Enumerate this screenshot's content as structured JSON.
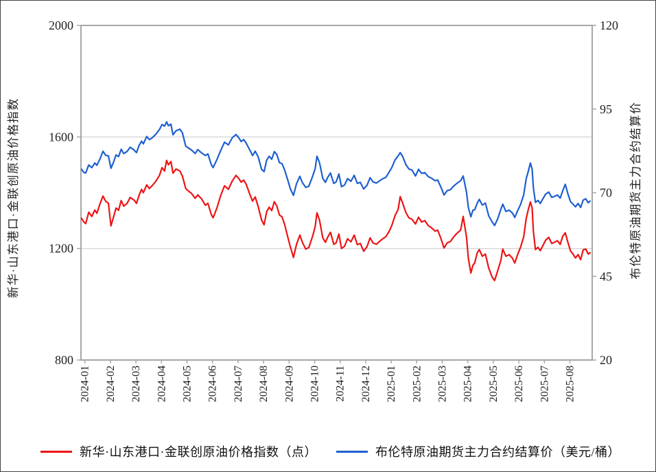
{
  "chart_data": {
    "type": "line",
    "title": "",
    "grid": "horizontal gridlines at left-axis ticks only",
    "legend_position": "bottom",
    "x_axis": {
      "tick_labels": [
        "2024-01",
        "2024-02",
        "2024-03",
        "2024-04",
        "2024-05",
        "2024-06",
        "2024-07",
        "2024-08",
        "2024-09",
        "2024-10",
        "2024-11",
        "2024-12",
        "2025-01",
        "2025-02",
        "2025-03",
        "2025-04",
        "2025-05",
        "2025-06",
        "2025-07",
        "2025-08"
      ]
    },
    "left_axis": {
      "label": "新华·山东港口·金联创原油价格指数",
      "range": [
        800,
        2000
      ],
      "ticks": [
        2000,
        1600,
        1200,
        800
      ]
    },
    "right_axis": {
      "label": "布伦特原油期货主力合约结算价",
      "range": [
        20,
        120
      ],
      "ticks": [
        120,
        95,
        70,
        45,
        20
      ]
    },
    "x_unit_months_from_2024_01": true,
    "x": [
      0,
      0.08,
      0.16,
      0.28,
      0.4,
      0.52,
      0.6,
      0.72,
      0.84,
      0.94,
      1.05,
      1.15,
      1.25,
      1.35,
      1.45,
      1.55,
      1.65,
      1.78,
      1.9,
      2.05,
      2.15,
      2.25,
      2.35,
      2.42,
      2.55,
      2.65,
      2.75,
      2.9,
      3.05,
      3.15,
      3.25,
      3.33,
      3.4,
      3.5,
      3.58,
      3.7,
      3.85,
      3.95,
      4.08,
      4.2,
      4.3,
      4.45,
      4.55,
      4.7,
      4.85,
      4.95,
      5.08,
      5.15,
      5.3,
      5.45,
      5.6,
      5.75,
      5.9,
      6.05,
      6.15,
      6.25,
      6.35,
      6.45,
      6.6,
      6.7,
      6.8,
      6.92,
      7.05,
      7.15,
      7.25,
      7.35,
      7.45,
      7.55,
      7.65,
      7.75,
      7.85,
      7.95,
      8.08,
      8.18,
      8.3,
      8.42,
      8.55,
      8.65,
      8.78,
      8.9,
      9.05,
      9.15,
      9.22,
      9.32,
      9.45,
      9.55,
      9.65,
      9.75,
      9.88,
      9.97,
      10.08,
      10.18,
      10.3,
      10.42,
      10.55,
      10.68,
      10.8,
      10.92,
      11.05,
      11.18,
      11.3,
      11.42,
      11.55,
      11.68,
      11.8,
      11.92,
      12.05,
      12.15,
      12.28,
      12.4,
      12.48,
      12.58,
      12.7,
      12.82,
      12.94,
      13.08,
      13.2,
      13.32,
      13.45,
      13.58,
      13.7,
      13.85,
      13.95,
      14.08,
      14.2,
      14.32,
      14.45,
      14.58,
      14.7,
      14.85,
      14.95,
      15.08,
      15.15,
      15.25,
      15.33,
      15.4,
      15.5,
      15.58,
      15.7,
      15.82,
      15.95,
      16.08,
      16.18,
      16.3,
      16.42,
      16.5,
      16.62,
      16.75,
      16.88,
      16.97,
      17.08,
      17.2,
      17.32,
      17.42,
      17.5,
      17.58,
      17.65,
      17.7,
      17.78,
      17.88,
      17.97,
      18.08,
      18.18,
      18.3,
      18.42,
      18.52,
      18.64,
      18.75,
      18.85,
      18.95,
      19.05,
      19.15,
      19.25,
      19.35,
      19.45,
      19.55,
      19.65,
      19.75,
      19.85,
      19.92
    ],
    "series": [
      {
        "name": "新华·山东港口·金联创原油价格指数（点）",
        "axis": "left",
        "color": "#ed1414",
        "values": [
          1308,
          1296,
          1289,
          1330,
          1315,
          1338,
          1326,
          1360,
          1388,
          1370,
          1362,
          1281,
          1312,
          1345,
          1337,
          1372,
          1352,
          1361,
          1383,
          1374,
          1362,
          1390,
          1412,
          1400,
          1428,
          1415,
          1424,
          1440,
          1462,
          1490,
          1478,
          1516,
          1500,
          1512,
          1470,
          1485,
          1478,
          1460,
          1415,
          1405,
          1398,
          1380,
          1392,
          1378,
          1355,
          1362,
          1322,
          1310,
          1345,
          1390,
          1425,
          1412,
          1442,
          1462,
          1452,
          1438,
          1445,
          1430,
          1392,
          1370,
          1385,
          1350,
          1302,
          1285,
          1332,
          1348,
          1336,
          1368,
          1352,
          1320,
          1314,
          1288,
          1240,
          1205,
          1168,
          1215,
          1248,
          1222,
          1198,
          1203,
          1244,
          1278,
          1328,
          1302,
          1238,
          1222,
          1242,
          1258,
          1215,
          1220,
          1252,
          1200,
          1208,
          1235,
          1224,
          1248,
          1214,
          1218,
          1190,
          1206,
          1238,
          1220,
          1215,
          1226,
          1235,
          1242,
          1262,
          1282,
          1318,
          1340,
          1386,
          1362,
          1330,
          1310,
          1305,
          1288,
          1312,
          1295,
          1300,
          1282,
          1275,
          1262,
          1266,
          1235,
          1202,
          1220,
          1225,
          1242,
          1254,
          1266,
          1315,
          1240,
          1165,
          1112,
          1140,
          1148,
          1185,
          1196,
          1172,
          1180,
          1130,
          1098,
          1085,
          1120,
          1155,
          1198,
          1172,
          1178,
          1165,
          1148,
          1178,
          1205,
          1242,
          1308,
          1340,
          1367,
          1345,
          1262,
          1196,
          1204,
          1192,
          1212,
          1230,
          1240,
          1218,
          1222,
          1228,
          1215,
          1244,
          1256,
          1222,
          1192,
          1180,
          1166,
          1178,
          1160,
          1195,
          1198,
          1180,
          1185
        ]
      },
      {
        "name": "布伦特原油期货主力合约结算价（美元/桶）",
        "axis": "right",
        "color": "#1e5fd0",
        "values": [
          77,
          76.1,
          75.9,
          78.3,
          77.5,
          78.9,
          78.2,
          80.1,
          82.4,
          81.2,
          81,
          77.3,
          79.1,
          81.3,
          80.8,
          83,
          81.7,
          82.3,
          83.6,
          82.8,
          82,
          84.1,
          85.4,
          84.6,
          86.8,
          85.9,
          86.3,
          87.4,
          88.9,
          90.4,
          89.9,
          91.2,
          90,
          90.5,
          87.3,
          88.5,
          89,
          87.9,
          83.9,
          83.3,
          82.8,
          81.7,
          82.9,
          81.9,
          81.1,
          81.6,
          78.4,
          77.5,
          79.9,
          82.6,
          85.1,
          84.3,
          86.4,
          87.4,
          86.5,
          85.3,
          85.9,
          84.8,
          82.6,
          81.1,
          82.4,
          80.7,
          77,
          76.3,
          79.7,
          80.9,
          80,
          82.3,
          81.4,
          79,
          78.7,
          76.9,
          73.7,
          71.1,
          69.2,
          72.7,
          74.9,
          73,
          71.6,
          71.9,
          74.9,
          77.2,
          80.9,
          79,
          74.3,
          73.1,
          74.7,
          75.9,
          72.8,
          73.2,
          75.6,
          71.8,
          72.3,
          74.2,
          73.4,
          75.2,
          72.8,
          73.1,
          71.1,
          72.2,
          74.5,
          73.2,
          72.9,
          73.6,
          74.2,
          74.6,
          76.2,
          77.5,
          79.8,
          81,
          82,
          80.8,
          78.5,
          77.1,
          76.8,
          75,
          77,
          75.8,
          76,
          74.8,
          74.4,
          73.6,
          73.8,
          71.6,
          69.3,
          70.6,
          70.9,
          72,
          72.8,
          73.6,
          75,
          70.1,
          65.6,
          62.8,
          64.8,
          64.9,
          66.9,
          68,
          66.3,
          66.9,
          63.1,
          61.3,
          60.2,
          62.2,
          64.9,
          66.6,
          64.4,
          64.8,
          63.9,
          62.6,
          64.6,
          66.5,
          69.4,
          74.2,
          76.4,
          78.9,
          77,
          71.5,
          67.1,
          67.7,
          66.8,
          68.3,
          69.6,
          70.2,
          68.6,
          68.9,
          69.3,
          68.4,
          70.6,
          72.5,
          69.7,
          67.4,
          66.6,
          65.8,
          66.8,
          65.6,
          67.8,
          68.2,
          67,
          67.5
        ]
      }
    ]
  },
  "colors": {
    "red_series": "#ed1414",
    "blue_series": "#1e5fd0",
    "gridline": "#d6d6d6",
    "frame": "#a6a6a6",
    "tick_text": "#1f1f1f",
    "outer_border": "#444444"
  }
}
